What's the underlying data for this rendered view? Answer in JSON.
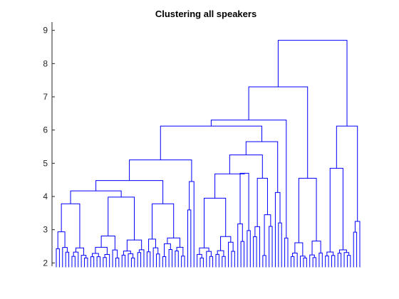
{
  "chart_data": {
    "type": "dendrogram",
    "title": "Clustering all speakers",
    "xlabel": "",
    "ylabel": "",
    "ylim": [
      1.9,
      9.25
    ],
    "yticks": [
      2,
      3,
      4,
      5,
      6,
      7,
      8,
      9
    ],
    "grid": false,
    "line_color": "#0000ff",
    "leaf_count": 98,
    "leaf_labels_note": "",
    "merges": [
      {
        "group": "left-a",
        "height": 3.78
      },
      {
        "group": "left-b",
        "height": 3.98
      },
      {
        "group": "left",
        "height": 4.17
      },
      {
        "group": "left-mid",
        "height": 4.48
      },
      {
        "group": "left-all",
        "height": 5.1
      },
      {
        "group": "center-a",
        "height": 4.7
      },
      {
        "group": "center-b",
        "height": 4.55
      },
      {
        "group": "center",
        "height": 5.25
      },
      {
        "group": "left-center",
        "height": 6.12
      },
      {
        "group": "middle-all",
        "height": 6.3
      },
      {
        "group": "right-a",
        "height": 4.55
      },
      {
        "group": "middle-right",
        "height": 7.3
      },
      {
        "group": "right-b",
        "height": 6.12
      },
      {
        "group": "root",
        "height": 8.7
      }
    ]
  }
}
